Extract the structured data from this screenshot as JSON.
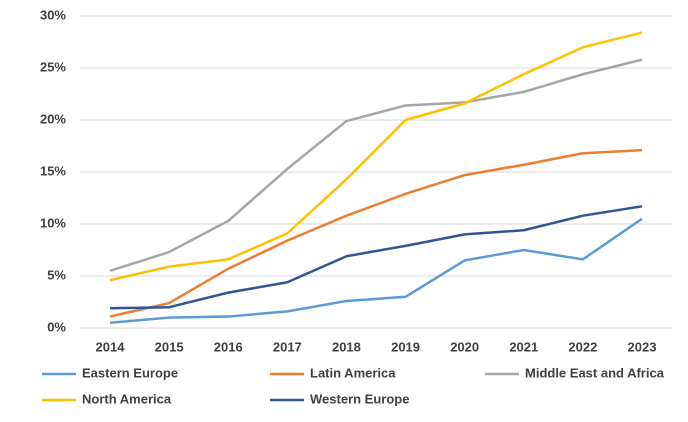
{
  "chart_data": {
    "type": "line",
    "categories": [
      "2014",
      "2015",
      "2016",
      "2017",
      "2018",
      "2019",
      "2020",
      "2021",
      "2022",
      "2023"
    ],
    "series": [
      {
        "name": "Eastern Europe",
        "color": "#5b9bd5",
        "values": [
          0.5,
          1.0,
          1.1,
          1.6,
          2.6,
          3.0,
          6.5,
          7.5,
          6.6,
          10.5
        ]
      },
      {
        "name": "Latin America",
        "color": "#ed7d31",
        "values": [
          1.1,
          2.4,
          5.7,
          8.4,
          10.8,
          12.9,
          14.7,
          15.7,
          16.8,
          17.1
        ]
      },
      {
        "name": "Middle East and Africa",
        "color": "#a5a5a5",
        "values": [
          5.5,
          7.3,
          10.3,
          15.3,
          19.9,
          21.4,
          21.7,
          22.7,
          24.4,
          25.8
        ]
      },
      {
        "name": "North America",
        "color": "#ffc000",
        "values": [
          4.6,
          5.9,
          6.6,
          9.1,
          14.3,
          20.0,
          21.6,
          24.4,
          27.0,
          28.4
        ]
      },
      {
        "name": "Western Europe",
        "color": "#2f5597",
        "values": [
          1.9,
          2.0,
          3.4,
          4.4,
          6.9,
          7.9,
          9.0,
          9.4,
          10.8,
          11.7
        ]
      }
    ],
    "ylim": [
      0,
      30
    ],
    "yticks": [
      {
        "value": 0,
        "label": "0%"
      },
      {
        "value": 5,
        "label": "5%"
      },
      {
        "value": 10,
        "label": "10%"
      },
      {
        "value": 15,
        "label": "15%"
      },
      {
        "value": 20,
        "label": "20%"
      },
      {
        "value": 25,
        "label": "25%"
      },
      {
        "value": 30,
        "label": "30%"
      }
    ],
    "grid": true
  }
}
